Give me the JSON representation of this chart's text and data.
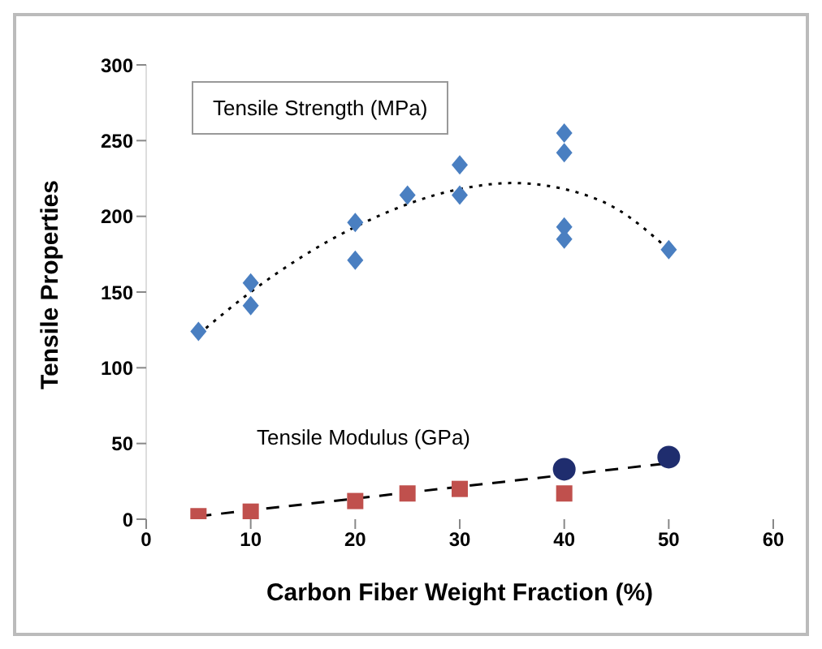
{
  "chart_data": {
    "type": "scatter",
    "xlabel": "Carbon Fiber Weight Fraction (%)",
    "ylabel": "Tensile Properties",
    "annotations": [
      "Tensile Strength (MPa)",
      "Tensile Modulus (GPa)"
    ],
    "xlim": [
      0,
      60
    ],
    "xticks": [
      0,
      10,
      20,
      30,
      40,
      50,
      60
    ],
    "ylim": [
      0,
      300
    ],
    "yticks": [
      0,
      50,
      100,
      150,
      200,
      250,
      300
    ],
    "grid": false,
    "legend": false,
    "series": [
      {
        "type": "line",
        "color": "#000000",
        "line_style": "dotted",
        "marker": "none",
        "x": [
          5,
          10,
          20,
          30,
          35,
          40,
          45,
          50
        ],
        "values": [
          122,
          150,
          193,
          218,
          222,
          218,
          205,
          178
        ]
      },
      {
        "type": "line",
        "color": "#000000",
        "line_style": "dashed",
        "marker": "none",
        "x": [
          5,
          50
        ],
        "values": [
          2,
          37
        ]
      },
      {
        "color": "#4a7fc1",
        "marker": "diamond",
        "x": [
          5,
          10,
          10,
          20,
          20,
          25,
          30,
          30,
          40,
          40,
          40,
          40,
          50
        ],
        "values": [
          124,
          156,
          141,
          196,
          171,
          214,
          234,
          214,
          255,
          242,
          193,
          185,
          178
        ]
      },
      {
        "color": "#c0504d",
        "marker": "square",
        "x": [
          5,
          10,
          20,
          25,
          30,
          40
        ],
        "values": [
          2,
          5,
          12,
          17,
          20,
          17
        ]
      },
      {
        "color": "#1f2d6e",
        "marker": "circle",
        "x": [
          40,
          50
        ],
        "values": [
          33,
          41
        ]
      }
    ]
  }
}
